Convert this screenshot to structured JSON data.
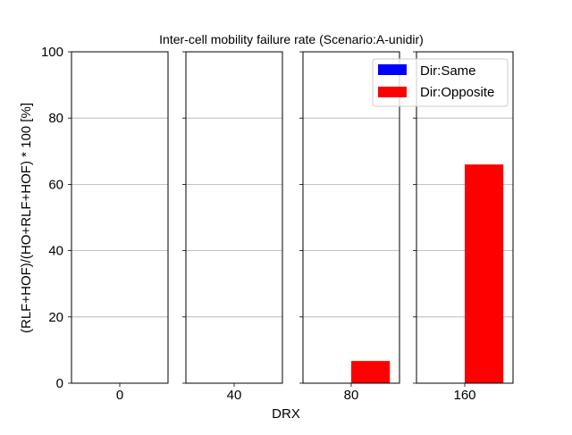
{
  "chart_data": {
    "type": "bar",
    "title": "Inter-cell mobility failure rate (Scenario:A-unidir)",
    "xlabel": "DRX",
    "ylabel": "(RLF+HOF)/(HO+RLF+HOF) * 100 [%]",
    "ylim": [
      0,
      100
    ],
    "yticks": [
      0,
      20,
      40,
      60,
      80,
      100
    ],
    "grid": "y",
    "legend_position": "top-right",
    "categories": [
      "0",
      "40",
      "80",
      "160"
    ],
    "series": [
      {
        "name": "Dir:Same",
        "color": "#0000ff",
        "values": [
          0,
          0,
          0,
          0
        ]
      },
      {
        "name": "Dir:Opposite",
        "color": "#ff0000",
        "values": [
          0,
          0,
          6.7,
          66
        ]
      }
    ]
  }
}
